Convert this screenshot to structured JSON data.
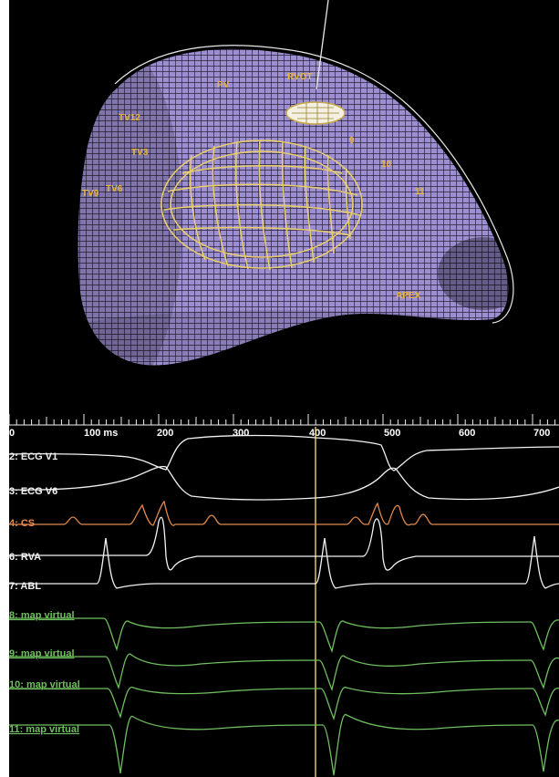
{
  "map": {
    "labels": [
      {
        "id": "pv",
        "text": "PV"
      },
      {
        "id": "rvot",
        "text": "RVOT"
      },
      {
        "id": "tv12",
        "text": "TV12"
      },
      {
        "id": "tv3",
        "text": "TV3"
      },
      {
        "id": "tv9",
        "text": "TV9"
      },
      {
        "id": "tv6",
        "text": "TV6"
      },
      {
        "id": "p9",
        "text": "9"
      },
      {
        "id": "p10",
        "text": "10"
      },
      {
        "id": "p11",
        "text": "11"
      },
      {
        "id": "apex",
        "text": "APEX"
      }
    ],
    "colors": {
      "surface": "#9c8fd1",
      "mesh": "#2a2238",
      "label": "#e6b53c",
      "background": "#000000"
    }
  },
  "timeline": {
    "ticks": [
      "0",
      "100 ms",
      "200",
      "300",
      "400",
      "500",
      "600",
      "700"
    ]
  },
  "channels": [
    {
      "label": "2: ECG V1",
      "color": "#f2f2f2"
    },
    {
      "label": "3: ECG V6",
      "color": "#f2f2f2"
    },
    {
      "label": "4: CS",
      "color": "#e0894c"
    },
    {
      "label": "6: RVA",
      "color": "#f2f2f2"
    },
    {
      "label": "7: ABL",
      "color": "#f2f2f2"
    },
    {
      "label": "8: map virtual",
      "color": "#6fbf5f"
    },
    {
      "label": "9: map virtual",
      "color": "#6fbf5f"
    },
    {
      "label": "10: map virtual",
      "color": "#6fbf5f"
    },
    {
      "label": "11: map virtual",
      "color": "#6fbf5f"
    }
  ]
}
